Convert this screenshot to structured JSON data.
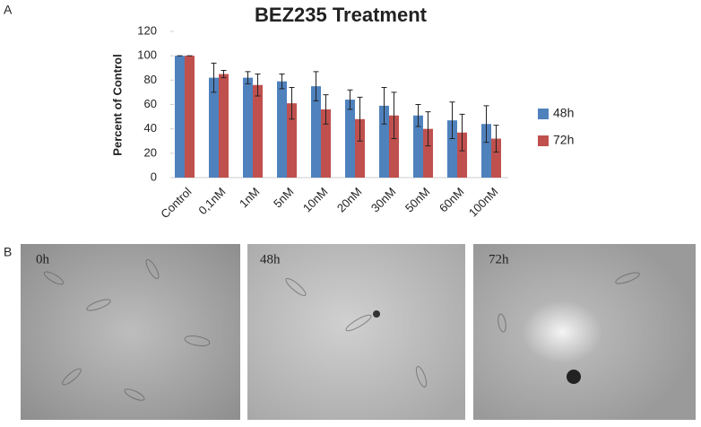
{
  "chart_data": {
    "type": "bar",
    "title": "BEZ235 Treatment",
    "y_label": "Percent of Control",
    "categories": [
      "Control",
      "0,1nM",
      "1nM",
      "5nM",
      "10nM",
      "20nM",
      "30nM",
      "50nM",
      "60nM",
      "100nM"
    ],
    "series": [
      {
        "name": "48h",
        "color": "#4f81bd",
        "values": [
          100,
          82,
          82,
          79,
          75,
          64,
          59,
          51,
          47,
          44
        ],
        "errors": [
          0,
          12,
          5,
          6,
          12,
          8,
          15,
          9,
          15,
          15
        ]
      },
      {
        "name": "72h",
        "color": "#c0504d",
        "values": [
          100,
          85,
          76,
          61,
          56,
          48,
          51,
          40,
          37,
          32
        ],
        "errors": [
          0,
          3,
          9,
          13,
          12,
          18,
          19,
          14,
          15,
          11
        ]
      }
    ],
    "ylim": [
      0,
      120
    ],
    "yticks": [
      0,
      20,
      40,
      60,
      80,
      100,
      120
    ],
    "legend": "right"
  },
  "panel_labels": [
    "A",
    "B"
  ],
  "images": [
    {
      "label": "0h"
    },
    {
      "label": "48h"
    },
    {
      "label": "72h"
    }
  ]
}
